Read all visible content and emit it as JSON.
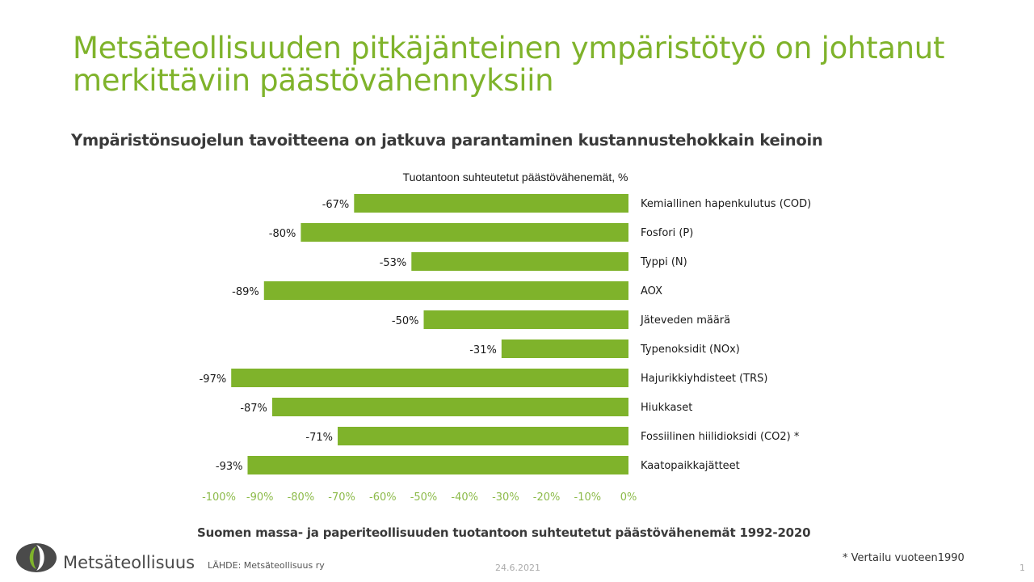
{
  "slide": {
    "title": "Metsäteollisuuden pitkäjänteinen ympäristötyö on johtanut merkittäviin päästövähennyksiin",
    "subtitle": "Ympäristönsuojelun tavoitteena on jatkuva parantaminen kustannustehokkain keinoin",
    "chart_caption": "Suomen massa- ja paperiteollisuuden tuotantoon suhteutetut päästövähenemät 1992-2020",
    "logo_text": "Metsäteollisuus",
    "source": "LÄHDE:  Metsäteollisuus ry",
    "date": "24.6.2021",
    "note": "* Vertailu vuoteen1990",
    "page_number": "1"
  },
  "colors": {
    "title": "#7fb32b",
    "bar": "#7fb32b",
    "tick_label": "#8dbb4a"
  },
  "chart_data": {
    "type": "bar",
    "orientation": "horizontal",
    "title": "Tuotantoon  suhteutetut  päästövähenemät,  %",
    "categories": [
      "Kemiallinen hapenkulutus (COD)",
      "Fosfori (P)",
      "Typpi (N)",
      "AOX",
      "Jäteveden määrä",
      "Typenoksidit (NOx)",
      "Hajurikkiyhdisteet (TRS)",
      "Hiukkaset",
      "Fossiilinen hiilidioksidi (CO2) *",
      "Kaatopaikkajätteet"
    ],
    "values": [
      -67,
      -80,
      -53,
      -89,
      -50,
      -31,
      -97,
      -87,
      -71,
      -93
    ],
    "data_labels": [
      "-67%",
      "-80%",
      "-53%",
      "-89%",
      "-50%",
      "-31%",
      "-97%",
      "-87%",
      "-71%",
      "-93%"
    ],
    "xlim": [
      -100,
      0
    ],
    "xticks": [
      -100,
      -90,
      -80,
      -70,
      -60,
      -50,
      -40,
      -30,
      -20,
      -10,
      0
    ],
    "xtick_labels": [
      "-100%",
      "-90%",
      "-80%",
      "-70%",
      "-60%",
      "-50%",
      "-40%",
      "-30%",
      "-20%",
      "-10%",
      "0%"
    ],
    "grid": false,
    "legend": "none"
  }
}
